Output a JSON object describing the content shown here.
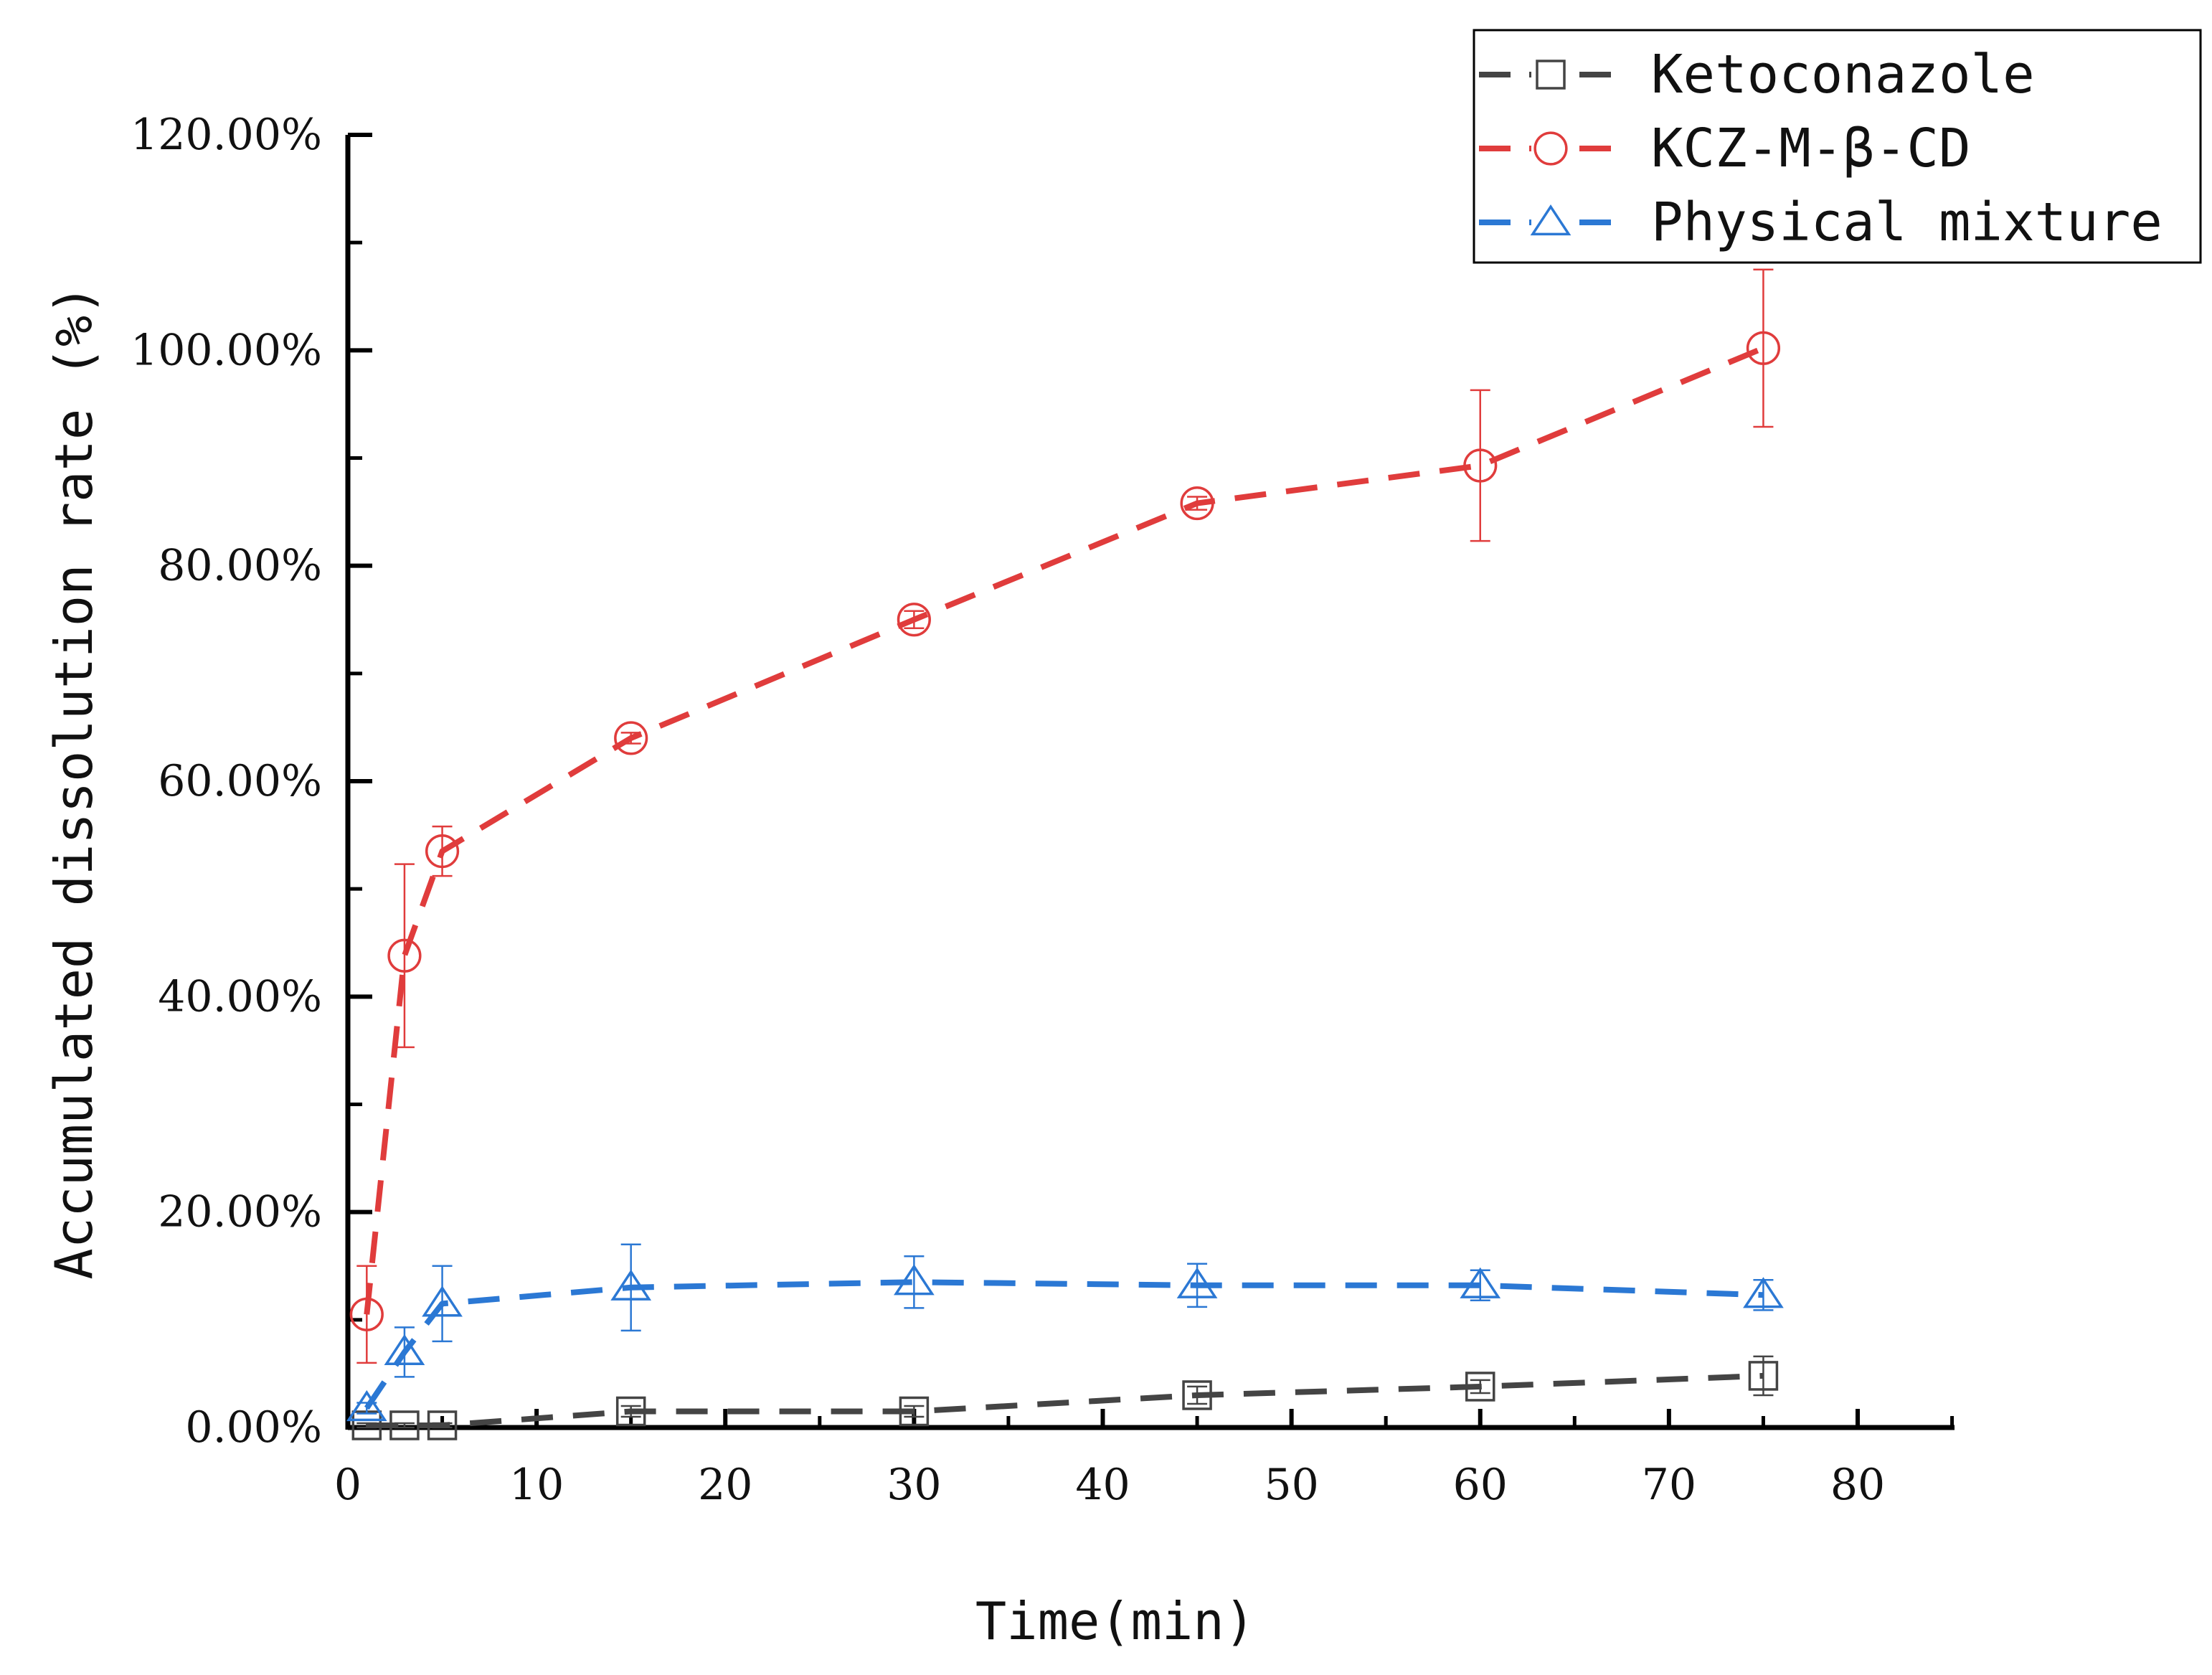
{
  "chart_data": {
    "type": "line",
    "title": "",
    "xlabel": "Time(min)",
    "ylabel": "Accumulated dissolution rate (%)",
    "xlim": [
      0,
      85
    ],
    "ylim": [
      0,
      120
    ],
    "x_ticks": [
      0,
      10,
      20,
      30,
      40,
      50,
      60,
      70,
      80
    ],
    "x_tick_labels": [
      "0",
      "10",
      "20",
      "30",
      "40",
      "50",
      "60",
      "70",
      "80"
    ],
    "y_ticks": [
      0,
      20,
      40,
      60,
      80,
      100,
      120
    ],
    "y_tick_labels": [
      "0.00%",
      "20.00%",
      "40.00%",
      "60.00%",
      "80.00%",
      "100.00%",
      "120.00%"
    ],
    "grid": false,
    "legend_position": "top-right",
    "series": [
      {
        "name": "Ketoconazole",
        "color": "#444444",
        "marker": "square",
        "x": [
          1,
          3,
          5,
          15,
          30,
          45,
          60,
          75
        ],
        "values": [
          0.2,
          0.2,
          0.2,
          1.5,
          1.5,
          3.0,
          3.8,
          4.8
        ],
        "errors": [
          0.2,
          0.2,
          0.2,
          0.5,
          0.5,
          0.8,
          0.6,
          1.8
        ]
      },
      {
        "name": "KCZ-M-β-CD",
        "color": "#e03c3c",
        "marker": "circle",
        "x": [
          1,
          3,
          5,
          15,
          30,
          45,
          60,
          75
        ],
        "values": [
          10.5,
          43.8,
          53.5,
          64.0,
          75.0,
          85.8,
          89.3,
          100.2
        ],
        "errors": [
          4.5,
          8.5,
          2.3,
          0.5,
          0.8,
          0.6,
          7.0,
          7.3
        ]
      },
      {
        "name": "Physical mixture",
        "color": "#2b78d4",
        "marker": "triangle",
        "x": [
          1,
          3,
          5,
          15,
          30,
          45,
          60,
          75
        ],
        "values": [
          1.8,
          7.0,
          11.5,
          13.0,
          13.5,
          13.2,
          13.2,
          12.3
        ],
        "errors": [
          0.5,
          2.3,
          3.5,
          4.0,
          2.4,
          2.0,
          1.4,
          1.4
        ]
      }
    ]
  }
}
